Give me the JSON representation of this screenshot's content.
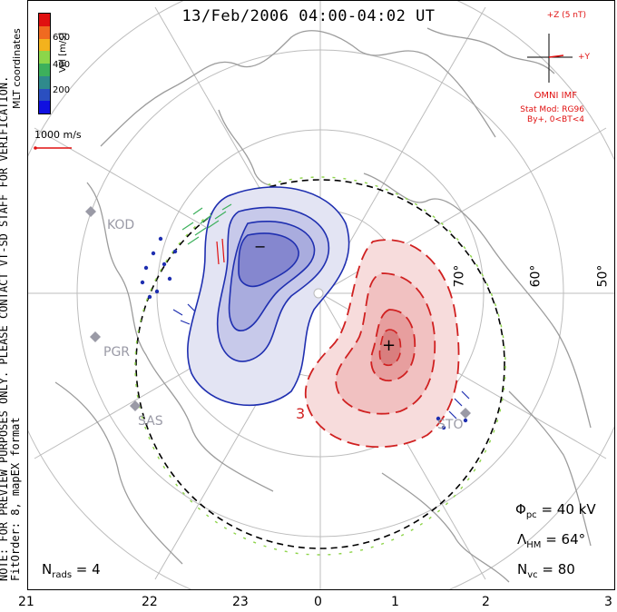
{
  "title": "13/Feb/2006 04:00-04:02 UT",
  "side_note_line1": "NOTE: FOR PREVIEW PURPOSES ONLY. PLEASE CONTACT VT-SD STAFF FOR VERIFICATION.",
  "side_note_line2": "FitOrder: 8,  mapEX format",
  "coord_label": "MLT coordinates",
  "velocity_scale": {
    "unit": "Vel [m/s]",
    "ticks": [
      "600",
      "400",
      "200"
    ],
    "colors": [
      "#e01010",
      "#f06a20",
      "#f3b21d",
      "#8cd64a",
      "#3db05c",
      "#2f8a8c",
      "#2a4fc0",
      "#1010e0"
    ]
  },
  "reference_vector": "1000 m/s",
  "imf": {
    "z_label": "+Z (5 nT)",
    "y_label": "+Y",
    "source": "OMNI IMF",
    "model": "Stat Mod: RG96",
    "condition": "By+, 0<BT<4"
  },
  "stations": [
    "KOD",
    "PGR",
    "SAS",
    "STO"
  ],
  "latitude_labels": [
    "70°",
    "60°",
    "50°"
  ],
  "mlt_hours": [
    "21",
    "22",
    "23",
    "0",
    "1",
    "2",
    "3"
  ],
  "contour_labels": {
    "negative": "−",
    "positive": "+",
    "value": "3"
  },
  "stats": {
    "phi_pc_sym": "Φ",
    "phi_pc_sub": "pc",
    "phi_pc_val": " = 40 kV",
    "lambda_sym": "Λ",
    "lambda_sub": "HM",
    "lambda_val": " = 64°",
    "nvc_sym": "N",
    "nvc_sub": "vc",
    "nvc_val": " = 80",
    "nrads_sym": "N",
    "nrads_sub": "rads",
    "nrads_val": " = 4"
  },
  "colors": {
    "negative_cell": "#1f2fb0",
    "positive_cell": "#d02020",
    "grid": "#b8b8b8",
    "coast": "#a8a8a8"
  }
}
